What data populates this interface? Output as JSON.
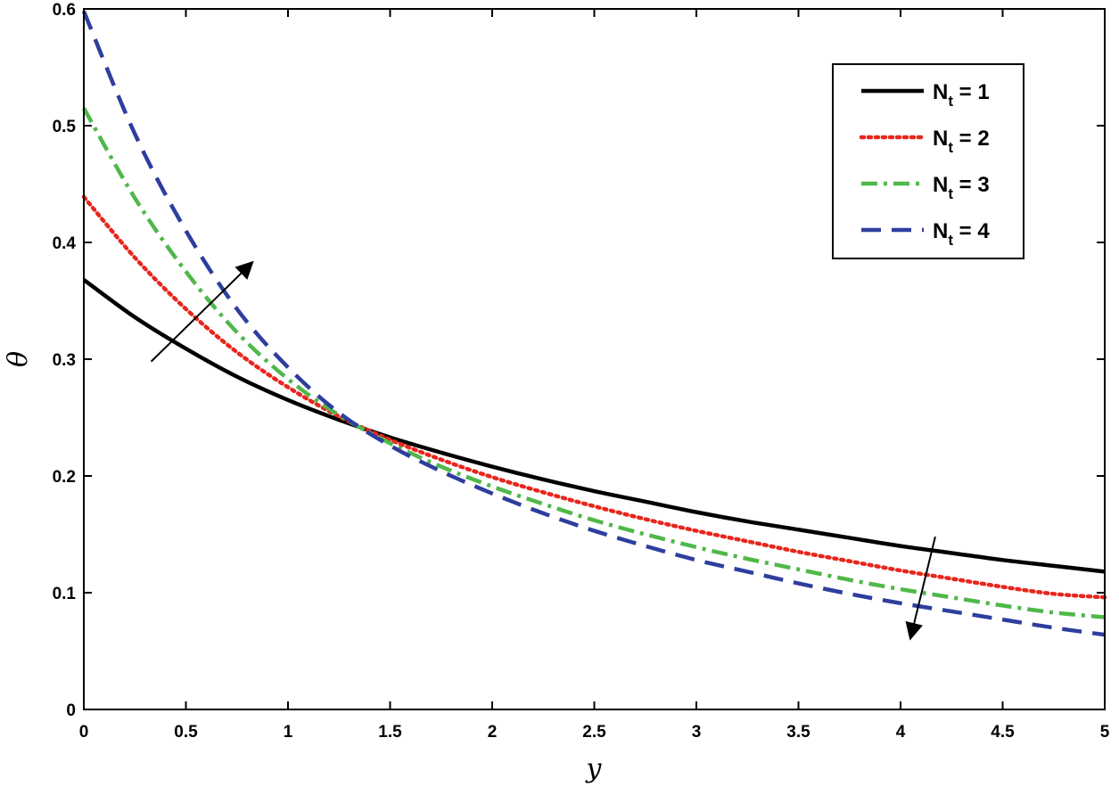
{
  "chart_data": {
    "type": "line",
    "xlabel": "y",
    "ylabel": "θ",
    "xlim": [
      0,
      5
    ],
    "ylim": [
      0,
      0.6
    ],
    "x_ticks": [
      0,
      0.5,
      1,
      1.5,
      2,
      2.5,
      3,
      3.5,
      4,
      4.5,
      5
    ],
    "x_tick_labels": [
      "0",
      "0.5",
      "1",
      "1.5",
      "2",
      "2.5",
      "3",
      "3.5",
      "4",
      "4.5",
      "5"
    ],
    "y_ticks": [
      0,
      0.1,
      0.2,
      0.3,
      0.4,
      0.5,
      0.6
    ],
    "y_tick_labels": [
      "0",
      "0.1",
      "0.2",
      "0.3",
      "0.4",
      "0.5",
      "0.6"
    ],
    "grid": false,
    "legend_position": "top-right",
    "x": [
      0,
      0.25,
      0.5,
      0.75,
      1,
      1.25,
      1.5,
      1.75,
      2,
      2.25,
      2.5,
      2.75,
      3,
      3.25,
      3.5,
      3.75,
      4,
      4.25,
      4.5,
      4.75,
      5
    ],
    "series": [
      {
        "name": "N = 1",
        "legend_main": "N",
        "legend_sub": "t",
        "legend_rest": " = 1",
        "color": "#000000",
        "style": "solid",
        "values": [
          0.368,
          0.336,
          0.309,
          0.285,
          0.265,
          0.248,
          0.233,
          0.22,
          0.208,
          0.197,
          0.187,
          0.178,
          0.169,
          0.161,
          0.154,
          0.147,
          0.14,
          0.134,
          0.128,
          0.123,
          0.118
        ]
      },
      {
        "name": "N = 2",
        "legend_main": "N",
        "legend_sub": "t",
        "legend_rest": " = 2",
        "color": "#e8261c",
        "style": "dotted",
        "values": [
          0.439,
          0.387,
          0.343,
          0.306,
          0.276,
          0.251,
          0.231,
          0.214,
          0.199,
          0.186,
          0.174,
          0.163,
          0.153,
          0.144,
          0.135,
          0.127,
          0.119,
          0.112,
          0.105,
          0.099,
          0.096
        ]
      },
      {
        "name": "N = 3",
        "legend_main": "N",
        "legend_sub": "t",
        "legend_rest": " = 3",
        "color": "#4fb84a",
        "style": "dashdot",
        "values": [
          0.515,
          0.438,
          0.375,
          0.323,
          0.283,
          0.252,
          0.228,
          0.208,
          0.191,
          0.176,
          0.162,
          0.15,
          0.139,
          0.129,
          0.12,
          0.111,
          0.103,
          0.096,
          0.089,
          0.083,
          0.079
        ]
      },
      {
        "name": "N = 4",
        "legend_main": "N",
        "legend_sub": "t",
        "legend_rest": " = 4",
        "color": "#2e3e9e",
        "style": "dashed",
        "values": [
          0.598,
          0.493,
          0.41,
          0.343,
          0.293,
          0.254,
          0.226,
          0.204,
          0.185,
          0.168,
          0.153,
          0.14,
          0.128,
          0.118,
          0.108,
          0.099,
          0.091,
          0.084,
          0.077,
          0.07,
          0.064
        ]
      }
    ],
    "annotations": [
      {
        "type": "arrow",
        "from": [
          0.33,
          0.298
        ],
        "to": [
          0.82,
          0.382
        ],
        "meaning": "increasing N near wall"
      },
      {
        "type": "arrow",
        "from": [
          4.17,
          0.148
        ],
        "to": [
          4.05,
          0.062
        ],
        "meaning": "decreasing far field"
      }
    ]
  }
}
